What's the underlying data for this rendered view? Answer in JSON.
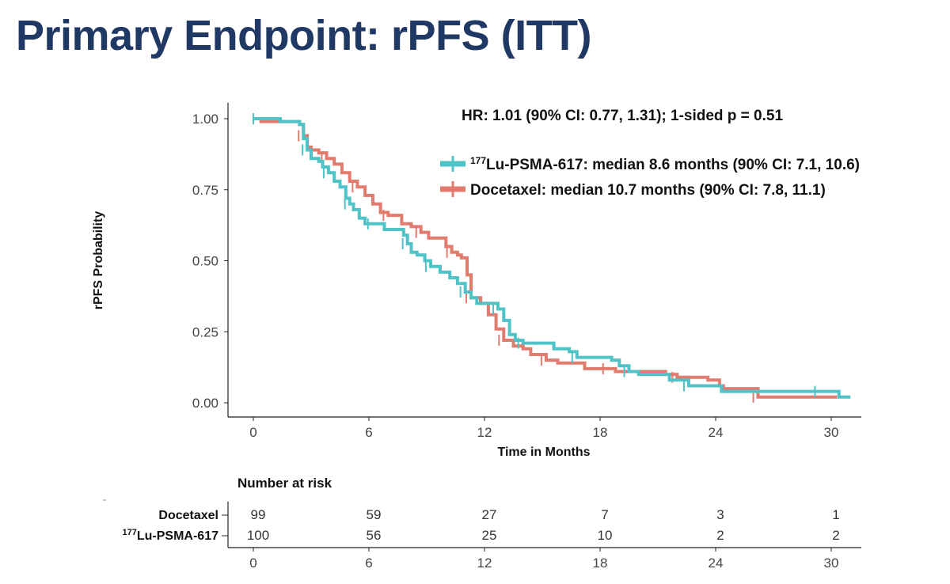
{
  "slide": {
    "title": "Primary Endpoint: rPFS (ITT)"
  },
  "annotation": {
    "hr": "HR: 1.01 (90% CI: 0.77, 1.31); 1-sided p = 0.51"
  },
  "legend": [
    {
      "sup": "177",
      "text": "Lu-PSMA-617: median 8.6 months (90% CI: 7.1, 10.6)"
    },
    {
      "sup": "",
      "text": "Docetaxel: median 10.7 months (90% CI: 7.8, 11.1)"
    }
  ],
  "colors": {
    "lu": "#4fc3c7",
    "doc": "#e07b6e",
    "title": "#1f3864"
  },
  "risk_table": {
    "title": "Number at risk",
    "times": [
      0,
      6,
      12,
      18,
      24,
      30
    ],
    "rows": [
      {
        "sup": "",
        "label": "Docetaxel",
        "values": [
          99,
          59,
          27,
          7,
          3,
          1
        ]
      },
      {
        "sup": "177",
        "label": "Lu-PSMA-617",
        "values": [
          100,
          56,
          25,
          10,
          2,
          2
        ]
      }
    ]
  },
  "chart_data": {
    "type": "line",
    "xlabel": "Time in Months",
    "ylabel": "rPFS Probability",
    "xlim": [
      0,
      31
    ],
    "ylim": [
      0,
      1.05
    ],
    "xticks": [
      0,
      6,
      12,
      18,
      24,
      30
    ],
    "yticks": [
      "0.00",
      "0.25",
      "0.50",
      "0.75",
      "1.00"
    ],
    "series": [
      {
        "name": "177Lu-PSMA-617",
        "color_key": "lu",
        "step_points": [
          [
            0,
            1.0
          ],
          [
            1.4,
            0.99
          ],
          [
            2.4,
            0.98
          ],
          [
            2.6,
            0.93
          ],
          [
            2.8,
            0.89
          ],
          [
            3.0,
            0.86
          ],
          [
            3.4,
            0.85
          ],
          [
            3.6,
            0.83
          ],
          [
            3.9,
            0.81
          ],
          [
            4.2,
            0.78
          ],
          [
            4.5,
            0.76
          ],
          [
            4.8,
            0.72
          ],
          [
            5.0,
            0.7
          ],
          [
            5.2,
            0.68
          ],
          [
            5.5,
            0.65
          ],
          [
            5.8,
            0.63
          ],
          [
            6.2,
            0.63
          ],
          [
            6.8,
            0.61
          ],
          [
            7.5,
            0.61
          ],
          [
            7.8,
            0.59
          ],
          [
            8.0,
            0.56
          ],
          [
            8.2,
            0.53
          ],
          [
            8.5,
            0.52
          ],
          [
            8.9,
            0.5
          ],
          [
            9.2,
            0.48
          ],
          [
            9.7,
            0.46
          ],
          [
            10.2,
            0.44
          ],
          [
            10.6,
            0.42
          ],
          [
            11.0,
            0.39
          ],
          [
            11.3,
            0.37
          ],
          [
            11.6,
            0.35
          ],
          [
            12.0,
            0.35
          ],
          [
            12.7,
            0.33
          ],
          [
            13.0,
            0.29
          ],
          [
            13.3,
            0.24
          ],
          [
            13.6,
            0.22
          ],
          [
            14.0,
            0.21
          ],
          [
            14.8,
            0.21
          ],
          [
            15.6,
            0.19
          ],
          [
            16.4,
            0.18
          ],
          [
            16.8,
            0.16
          ],
          [
            17.6,
            0.16
          ],
          [
            18.6,
            0.15
          ],
          [
            19.0,
            0.13
          ],
          [
            19.5,
            0.11
          ],
          [
            20.0,
            0.1
          ],
          [
            21.0,
            0.1
          ],
          [
            21.6,
            0.08
          ],
          [
            22.6,
            0.06
          ],
          [
            23.4,
            0.06
          ],
          [
            24.3,
            0.04
          ],
          [
            27.6,
            0.04
          ],
          [
            29.4,
            0.04
          ],
          [
            30.4,
            0.02
          ],
          [
            31.0,
            0.02
          ]
        ]
      },
      {
        "name": "Docetaxel",
        "color_key": "doc",
        "step_points": [
          [
            0,
            1.0
          ],
          [
            0.4,
            0.99
          ],
          [
            1.6,
            0.99
          ],
          [
            2.4,
            0.98
          ],
          [
            2.6,
            0.94
          ],
          [
            2.8,
            0.9
          ],
          [
            3.0,
            0.89
          ],
          [
            3.4,
            0.88
          ],
          [
            3.8,
            0.86
          ],
          [
            4.2,
            0.84
          ],
          [
            4.6,
            0.81
          ],
          [
            5.0,
            0.78
          ],
          [
            5.4,
            0.76
          ],
          [
            5.8,
            0.73
          ],
          [
            6.2,
            0.7
          ],
          [
            6.6,
            0.67
          ],
          [
            7.0,
            0.66
          ],
          [
            7.5,
            0.66
          ],
          [
            7.7,
            0.63
          ],
          [
            8.2,
            0.62
          ],
          [
            8.7,
            0.6
          ],
          [
            9.1,
            0.58
          ],
          [
            9.7,
            0.58
          ],
          [
            10.0,
            0.55
          ],
          [
            10.3,
            0.53
          ],
          [
            10.6,
            0.52
          ],
          [
            10.8,
            0.51
          ],
          [
            11.1,
            0.45
          ],
          [
            11.3,
            0.37
          ],
          [
            11.8,
            0.35
          ],
          [
            12.2,
            0.31
          ],
          [
            12.6,
            0.26
          ],
          [
            13.0,
            0.22
          ],
          [
            13.5,
            0.2
          ],
          [
            14.0,
            0.19
          ],
          [
            14.4,
            0.17
          ],
          [
            15.2,
            0.15
          ],
          [
            15.8,
            0.14
          ],
          [
            16.5,
            0.14
          ],
          [
            17.2,
            0.12
          ],
          [
            18.4,
            0.12
          ],
          [
            18.8,
            0.11
          ],
          [
            20.8,
            0.11
          ],
          [
            21.4,
            0.1
          ],
          [
            22.0,
            0.09
          ],
          [
            23.6,
            0.08
          ],
          [
            24.2,
            0.06
          ],
          [
            24.4,
            0.05
          ],
          [
            26.2,
            0.02
          ],
          [
            27.5,
            0.02
          ],
          [
            30.3,
            0.02
          ]
        ]
      }
    ]
  }
}
